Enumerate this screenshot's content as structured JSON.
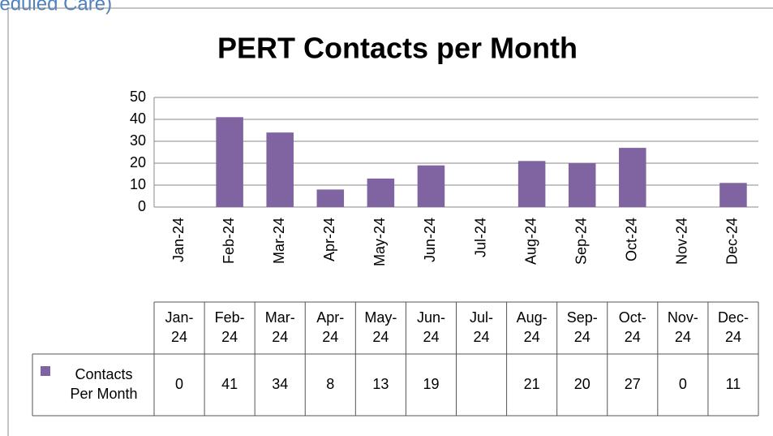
{
  "header": {
    "text": "(Scheduled Care)"
  },
  "chart_data": {
    "type": "bar",
    "title": "PERT Contacts per Month",
    "categories": [
      "Jan-24",
      "Feb-24",
      "Mar-24",
      "Apr-24",
      "May-24",
      "Jun-24",
      "Jul-24",
      "Aug-24",
      "Sep-24",
      "Oct-24",
      "Nov-24",
      "Dec-24"
    ],
    "series": [
      {
        "name": "Contacts Per Month",
        "color": "#8064a2",
        "values": [
          0,
          41,
          34,
          8,
          13,
          19,
          null,
          21,
          20,
          27,
          0,
          11
        ]
      }
    ],
    "ylim": [
      0,
      50
    ],
    "yticks": [
      0,
      10,
      20,
      30,
      40,
      50
    ],
    "grid": true,
    "data_table": true
  }
}
